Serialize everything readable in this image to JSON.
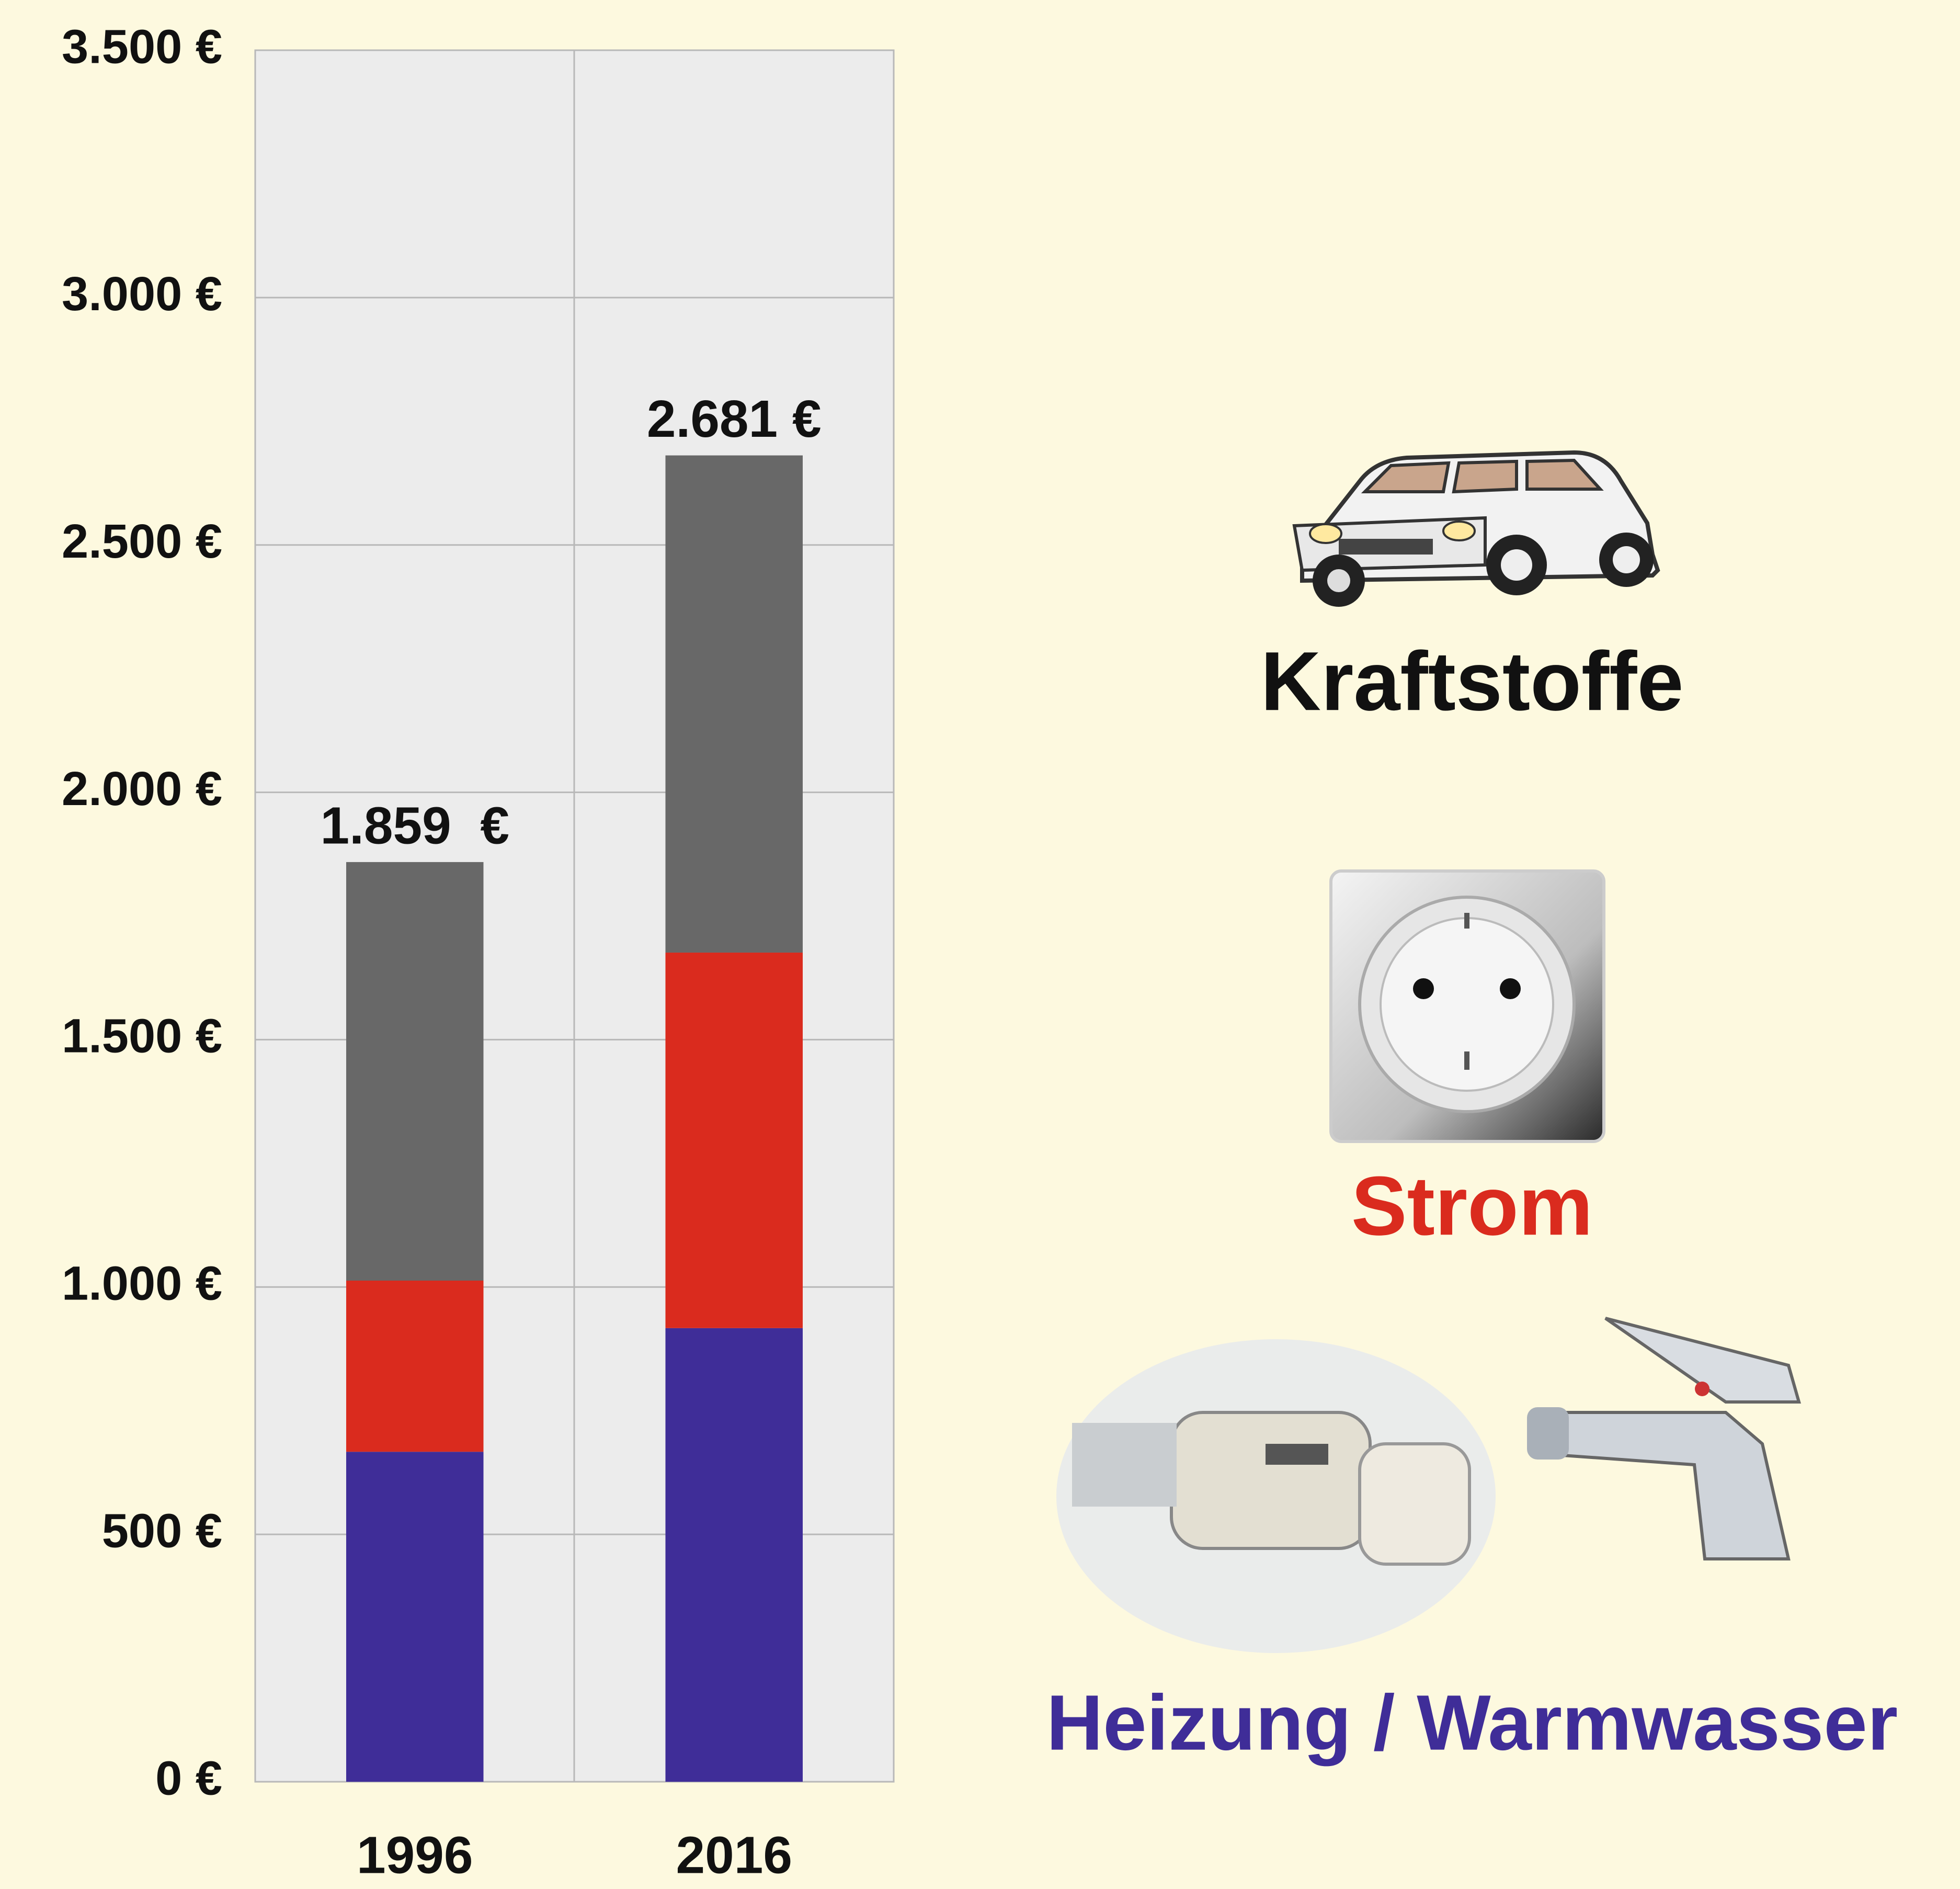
{
  "chart_data": {
    "type": "stacked_bar",
    "categories": [
      "1996",
      "2016"
    ],
    "series": [
      {
        "name": "Heizung / Warmwasser",
        "color": "#3f2d98",
        "values": [
          667,
          917
        ]
      },
      {
        "name": "Strom",
        "color": "#da2b1e",
        "values": [
          346,
          759
        ]
      },
      {
        "name": "Kraftstoffe",
        "color": "#686868",
        "values": [
          846,
          1005
        ]
      }
    ],
    "totals": {
      "values": [
        1859,
        2681
      ],
      "value_labels": [
        "1.859  €",
        "2.681 €"
      ]
    },
    "ylim": [
      0,
      3500
    ],
    "yticks": [
      {
        "value": 0,
        "label": "0 €"
      },
      {
        "value": 500,
        "label": "500 €"
      },
      {
        "value": 1000,
        "label": "1.000 €"
      },
      {
        "value": 1500,
        "label": "1.500 €"
      },
      {
        "value": 2000,
        "label": "2.000 €"
      },
      {
        "value": 2500,
        "label": "2.500 €"
      },
      {
        "value": 3000,
        "label": "3.000 €"
      },
      {
        "value": 3500,
        "label": "3.500 €"
      }
    ],
    "grid": true
  }
}
